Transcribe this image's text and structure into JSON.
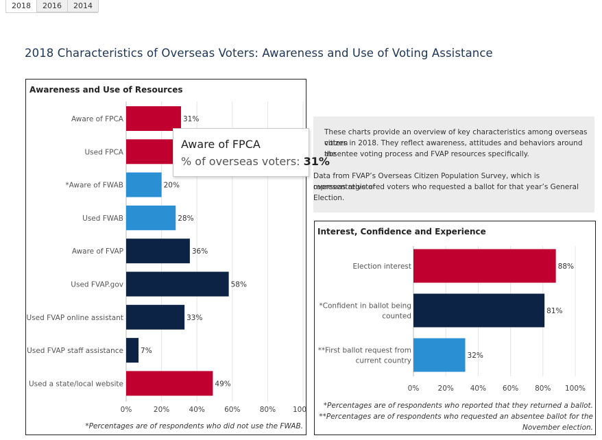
{
  "tabs": [
    "2018",
    "2016",
    "2014"
  ],
  "active_tab": "2018",
  "title": "2018 Characteristics of Overseas Voters: Awareness and Use of Voting Assistance",
  "colors": {
    "red": "#c0002f",
    "blue": "#2b8fd4",
    "navy": "#0d2346"
  },
  "info": {
    "lines": [
      "These charts provide an overview of key characteristics among overseas citizen",
      "voters in 2018. They reflect awareness, attitudes and behaviors around the",
      "absentee voting process and FVAP resources specifically.",
      "Data from FVAP’s Overseas Citizen Population Survey, which is representative of",
      "overseas registered voters who requested a ballot for that year’s General",
      "Election."
    ]
  },
  "tooltip": {
    "title": "Aware of FPCA",
    "measure_label": "% of overseas voters:",
    "value": "31%"
  },
  "chart_data": [
    {
      "type": "bar",
      "orientation": "horizontal",
      "title": "Awareness and Use of Resources",
      "categories": [
        "Aware of FPCA",
        "Used FPCA",
        "*Aware of FWAB",
        "Used FWAB",
        "Aware of FVAP",
        "Used FVAP.gov",
        "Used FVAP online assistant",
        "Used FVAP staff assistance",
        "Used a state/local website"
      ],
      "values": [
        31,
        28,
        20,
        28,
        36,
        58,
        33,
        7,
        49
      ],
      "colors": [
        "red",
        "red",
        "blue",
        "blue",
        "navy",
        "navy",
        "navy",
        "navy",
        "red"
      ],
      "xlim": [
        0,
        100
      ],
      "xticks": [
        "0%",
        "20%",
        "40%",
        "60%",
        "80%",
        "100%"
      ],
      "grid": true,
      "note": "*Percentages are of respondents who did not use the FWAB."
    },
    {
      "type": "bar",
      "orientation": "horizontal",
      "title": "Interest, Confidence and Experience",
      "categories": [
        [
          "Election interest"
        ],
        [
          "*Confident in ballot being",
          "counted"
        ],
        [
          "**First ballot request from",
          "current country"
        ]
      ],
      "values": [
        88,
        81,
        32
      ],
      "colors": [
        "red",
        "navy",
        "blue"
      ],
      "xlim": [
        0,
        100
      ],
      "xticks": [
        "0%",
        "20%",
        "40%",
        "60%",
        "80%",
        "100%"
      ],
      "grid": true,
      "notes": [
        "*Percentages are of respondents who reported that they returned a ballot.",
        "**Percentages are of respondents who requested an absentee ballot for the",
        "November election."
      ]
    }
  ]
}
